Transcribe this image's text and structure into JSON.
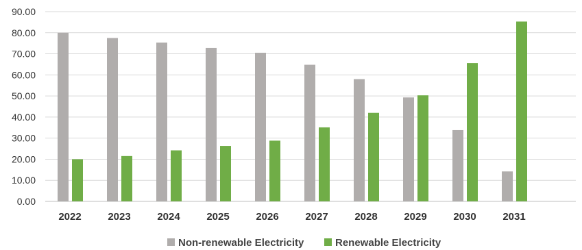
{
  "chart_data": {
    "type": "bar",
    "title": "",
    "xlabel": "",
    "ylabel": "",
    "categories": [
      "2022",
      "2023",
      "2024",
      "2025",
      "2026",
      "2027",
      "2028",
      "2029",
      "2030",
      "2031"
    ],
    "series": [
      {
        "name": "Non-renewable Electricity",
        "color": "#b0adac",
        "values": [
          80.0,
          77.5,
          75.3,
          72.8,
          70.5,
          64.8,
          58.0,
          49.3,
          33.8,
          14.2
        ]
      },
      {
        "name": "Renewable Electricity",
        "color": "#70ad47",
        "values": [
          20.0,
          21.5,
          24.2,
          26.3,
          28.8,
          35.1,
          42.0,
          50.3,
          65.6,
          85.3
        ]
      }
    ],
    "ylim": [
      0,
      90
    ],
    "yticks": [
      "0.00",
      "10.00",
      "20.00",
      "30.00",
      "40.00",
      "50.00",
      "60.00",
      "70.00",
      "80.00",
      "90.00"
    ],
    "grid": true,
    "legend_position": "bottom"
  }
}
